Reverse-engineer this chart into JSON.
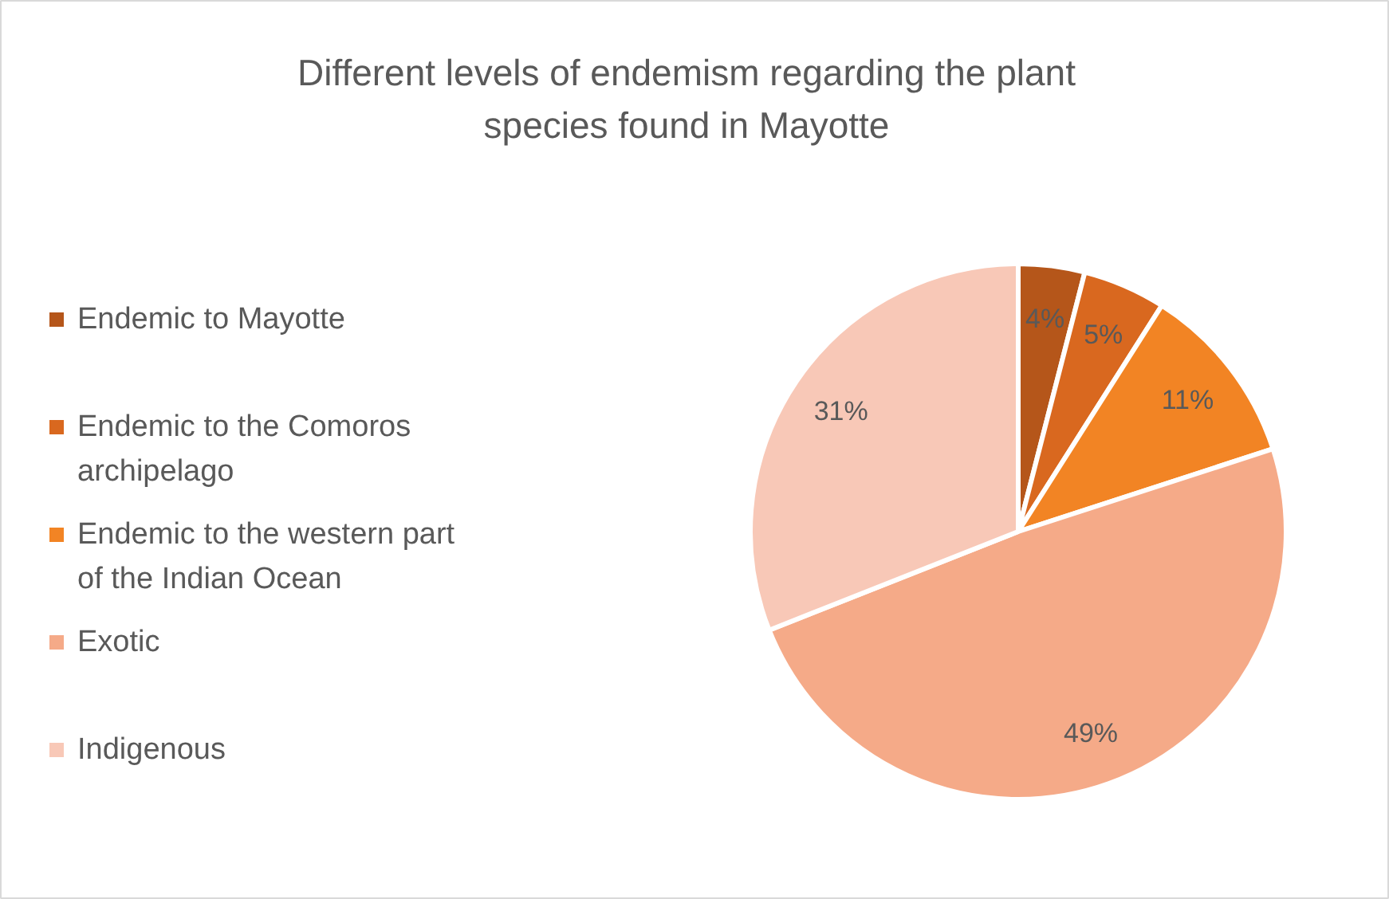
{
  "chart_data": {
    "type": "pie",
    "title": "Different levels of endemism regarding the plant species found in Mayotte",
    "categories": [
      "Endemic to Mayotte",
      "Endemic to the Comoros archipelago",
      "Endemic to the western part of the Indian Ocean",
      "Exotic",
      "Indigenous"
    ],
    "values": [
      4,
      5,
      11,
      49,
      31
    ],
    "colors": [
      "#b5561a",
      "#d9681f",
      "#f28424",
      "#f5aa88",
      "#f8c8b7"
    ],
    "value_labels": [
      "4%",
      "5%",
      "11%",
      "49%",
      "31%"
    ],
    "legend": "left"
  }
}
